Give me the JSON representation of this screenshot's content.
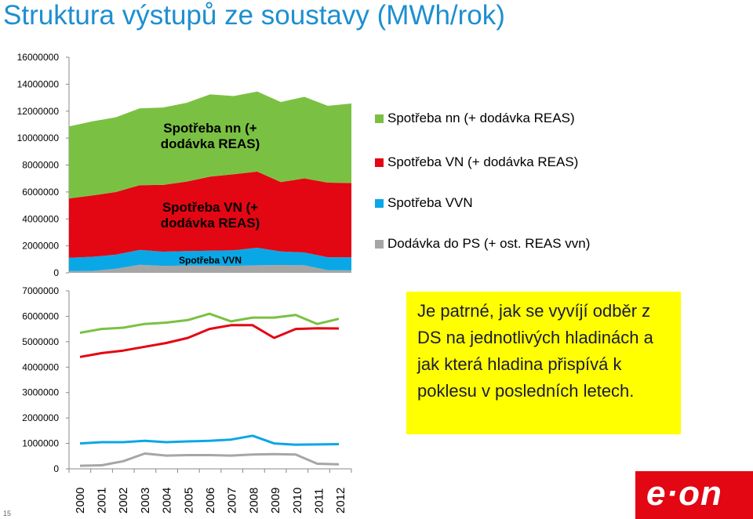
{
  "title": "Struktura výstupů ze soustavy (MWh/rok)",
  "slide_number": "15",
  "logo_text": "e·on",
  "note": "Je patrné, jak se vyvíjí odběr z DS na jednotlivých hladinách a jak která hladina přispívá k poklesu v posledních letech.",
  "colors": {
    "nn": "#7ac143",
    "vn": "#e30613",
    "vvn": "#0aa7e6",
    "ps": "#a6a6a6",
    "note_bg": "#ffff00",
    "title": "#1d8fd0"
  },
  "legend": [
    {
      "label": "Spotřeba nn (+ dodávka REAS)",
      "color": "#7ac143"
    },
    {
      "label": "Spotřeba VN (+ dodávka REAS)",
      "color": "#e30613"
    },
    {
      "label": "Spotřeba VVN",
      "color": "#0aa7e6"
    },
    {
      "label": "Dodávka do PS (+ ost. REAS vvn)",
      "color": "#a6a6a6"
    }
  ],
  "chart_data": [
    {
      "type": "area",
      "stacked": true,
      "x": [
        "2000",
        "2001",
        "2002",
        "2003",
        "2004",
        "2005",
        "2006",
        "2007",
        "2008",
        "2009",
        "2010",
        "2011",
        "2012"
      ],
      "ylim": [
        0,
        16000000
      ],
      "yticks": [
        "16000000",
        "14000000",
        "12000000",
        "10000000",
        "8000000",
        "6000000",
        "4000000",
        "2000000",
        "0"
      ],
      "area_labels": [
        "Spotřeba nn (+ dodávka REAS)",
        "Spotřeba VN (+ dodávka REAS)",
        "Spotřeba VVN"
      ],
      "series": [
        {
          "name": "Dodávka do PS (+ ost. REAS vvn)",
          "color": "#a6a6a6",
          "values": [
            120000,
            140000,
            300000,
            600000,
            520000,
            540000,
            540000,
            520000,
            560000,
            580000,
            560000,
            200000,
            180000
          ]
        },
        {
          "name": "Spotřeba VVN",
          "color": "#0aa7e6",
          "values": [
            1000000,
            1050000,
            1050000,
            1100000,
            1050000,
            1080000,
            1100000,
            1150000,
            1300000,
            1000000,
            950000,
            960000,
            970000
          ]
        },
        {
          "name": "Spotřeba VN (+ dodávka REAS)",
          "color": "#e30613",
          "values": [
            4400000,
            4550000,
            4650000,
            4800000,
            4950000,
            5150000,
            5500000,
            5650000,
            5650000,
            5150000,
            5500000,
            5530000,
            5520000
          ]
        },
        {
          "name": "Spotřeba nn (+ dodávka REAS)",
          "color": "#7ac143",
          "values": [
            5350000,
            5500000,
            5550000,
            5700000,
            5750000,
            5850000,
            6100000,
            5800000,
            5950000,
            5950000,
            6050000,
            5700000,
            5900000
          ]
        }
      ]
    },
    {
      "type": "line",
      "x": [
        "2000",
        "2001",
        "2002",
        "2003",
        "2004",
        "2005",
        "2006",
        "2007",
        "2008",
        "2009",
        "2010",
        "2011",
        "2012"
      ],
      "ylim": [
        0,
        7000000
      ],
      "yticks": [
        "7000000",
        "6000000",
        "5000000",
        "4000000",
        "3000000",
        "2000000",
        "1000000",
        "0"
      ],
      "series": [
        {
          "name": "Spotřeba nn (+ dodávka REAS)",
          "color": "#7ac143",
          "values": [
            5350000,
            5500000,
            5550000,
            5700000,
            5750000,
            5850000,
            6100000,
            5800000,
            5950000,
            5950000,
            6050000,
            5700000,
            5900000
          ]
        },
        {
          "name": "Spotřeba VN (+ dodávka REAS)",
          "color": "#e30613",
          "values": [
            4400000,
            4550000,
            4650000,
            4800000,
            4950000,
            5150000,
            5500000,
            5650000,
            5650000,
            5150000,
            5500000,
            5530000,
            5520000
          ]
        },
        {
          "name": "Spotřeba VVN",
          "color": "#0aa7e6",
          "values": [
            1000000,
            1050000,
            1050000,
            1100000,
            1050000,
            1080000,
            1100000,
            1150000,
            1300000,
            1000000,
            950000,
            960000,
            970000
          ]
        },
        {
          "name": "Dodávka do PS (+ ost. REAS vvn)",
          "color": "#a6a6a6",
          "values": [
            120000,
            140000,
            300000,
            600000,
            520000,
            540000,
            540000,
            520000,
            560000,
            580000,
            560000,
            200000,
            180000
          ]
        }
      ]
    }
  ]
}
